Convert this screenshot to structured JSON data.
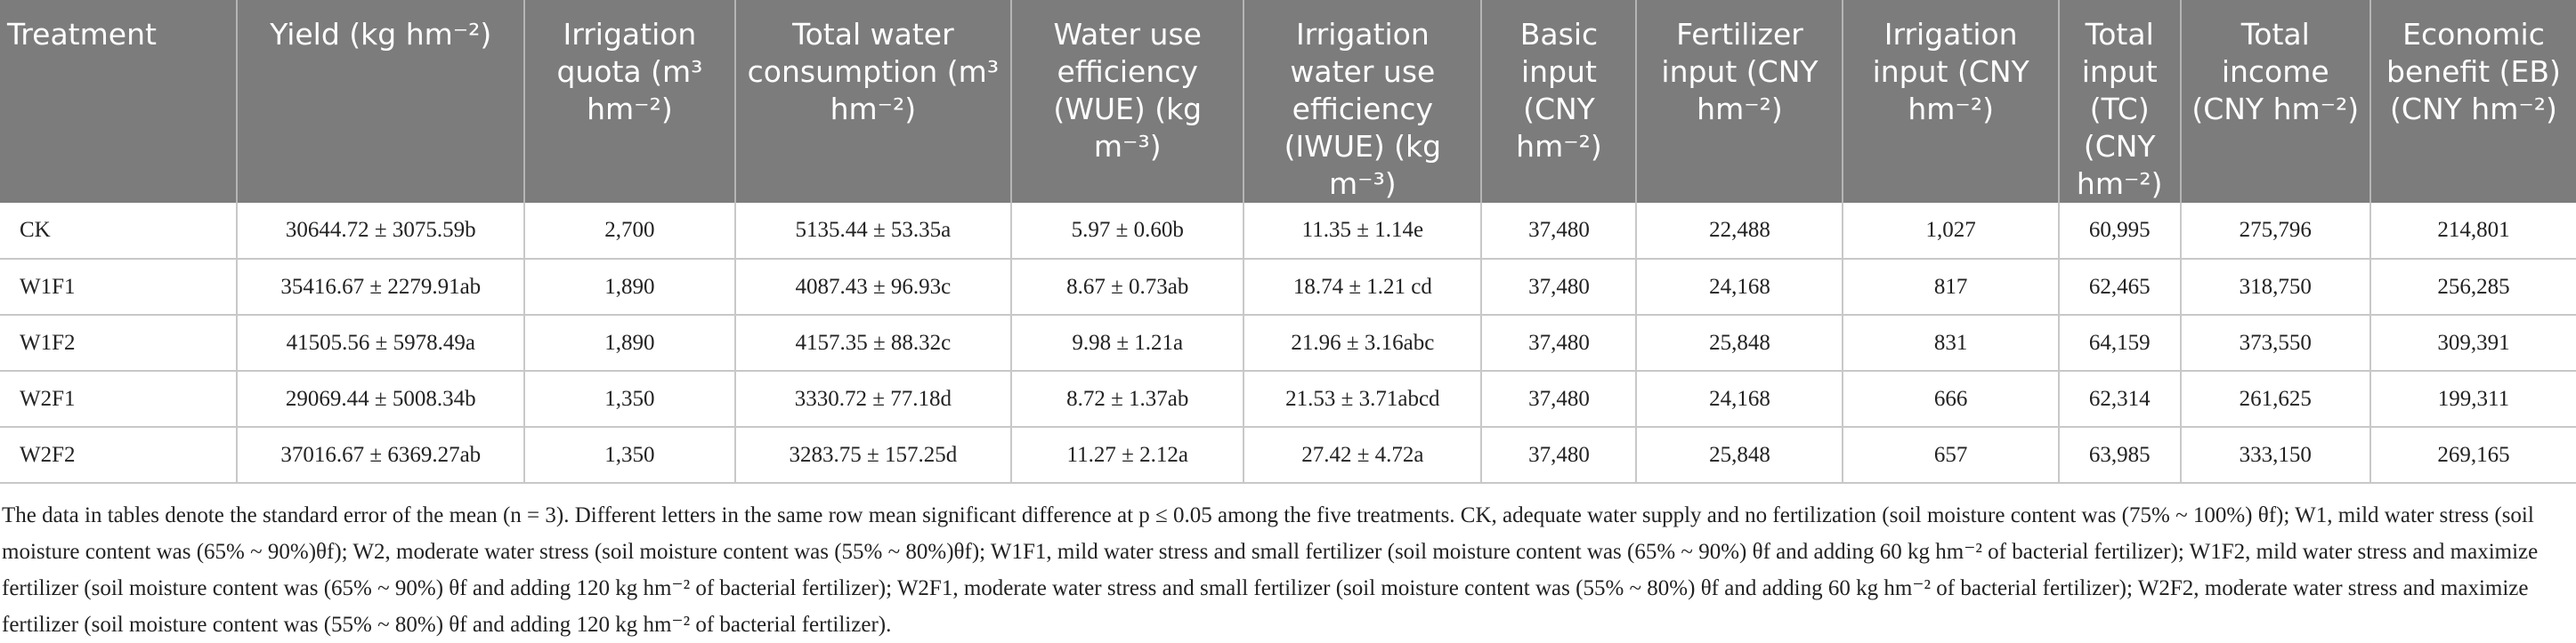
{
  "table": {
    "headers": [
      "Treatment",
      "Yield (kg hm⁻²)",
      "Irrigation quota (m³ hm⁻²)",
      "Total water consumption (m³ hm⁻²)",
      "Water use efficiency (WUE) (kg m⁻³)",
      "Irrigation water use efficiency (IWUE) (kg m⁻³)",
      "Basic input (CNY hm⁻²)",
      "Fertilizer input (CNY hm⁻²)",
      "Irrigation input (CNY hm⁻²)",
      "Total input (TC) (CNY hm⁻²)",
      "Total income (CNY hm⁻²)",
      "Economic benefit (EB) (CNY hm⁻²)"
    ],
    "rows": [
      [
        "CK",
        "30644.72 ± 3075.59b",
        "2,700",
        "5135.44 ± 53.35a",
        "5.97 ± 0.60b",
        "11.35 ± 1.14e",
        "37,480",
        "22,488",
        "1,027",
        "60,995",
        "275,796",
        "214,801"
      ],
      [
        "W1F1",
        "35416.67 ± 2279.91ab",
        "1,890",
        "4087.43 ± 96.93c",
        "8.67 ± 0.73ab",
        "18.74 ± 1.21 cd",
        "37,480",
        "24,168",
        "817",
        "62,465",
        "318,750",
        "256,285"
      ],
      [
        "W1F2",
        "41505.56 ± 5978.49a",
        "1,890",
        "4157.35 ± 88.32c",
        "9.98 ± 1.21a",
        "21.96 ± 3.16abc",
        "37,480",
        "25,848",
        "831",
        "64,159",
        "373,550",
        "309,391"
      ],
      [
        "W2F1",
        "29069.44 ± 5008.34b",
        "1,350",
        "3330.72 ± 77.18d",
        "8.72 ± 1.37ab",
        "21.53 ± 3.71abcd",
        "37,480",
        "24,168",
        "666",
        "62,314",
        "261,625",
        "199,311"
      ],
      [
        "W2F2",
        "37016.67 ± 6369.27ab",
        "1,350",
        "3283.75 ± 157.25d",
        "11.27 ± 2.12a",
        "27.42 ± 4.72a",
        "37,480",
        "25,848",
        "657",
        "63,985",
        "333,150",
        "269,165"
      ]
    ]
  },
  "footnote": "The data in tables denote the standard error of the mean (n = 3). Different letters in the same row mean significant difference at p ≤ 0.05 among the five treatments. CK, adequate water supply and no fertilization (soil moisture content was (75% ~ 100%) θf); W1, mild water stress (soil moisture content was (65% ~ 90%)θf); W2, moderate water stress (soil moisture content was (55% ~ 80%)θf); W1F1, mild water stress and small fertilizer (soil moisture content was (65% ~ 90%) θf and adding 60 kg hm⁻² of bacterial fertilizer); W1F2, mild water stress and maximize fertilizer (soil moisture content was (65% ~ 90%) θf and adding 120 kg hm⁻² of bacterial fertilizer); W2F1, moderate water stress and small fertilizer (soil moisture content was (55% ~ 80%) θf and adding 60 kg hm⁻² of bacterial fertilizer); W2F2, moderate water stress and maximize fertilizer (soil moisture content was (55% ~ 80%) θf and adding 120 kg hm⁻² of bacterial fertilizer).",
  "colors": {
    "header_bg": "#7c7c7c",
    "header_text": "#ffffff",
    "body_text": "#222222",
    "grid": "#c8c8c8"
  }
}
